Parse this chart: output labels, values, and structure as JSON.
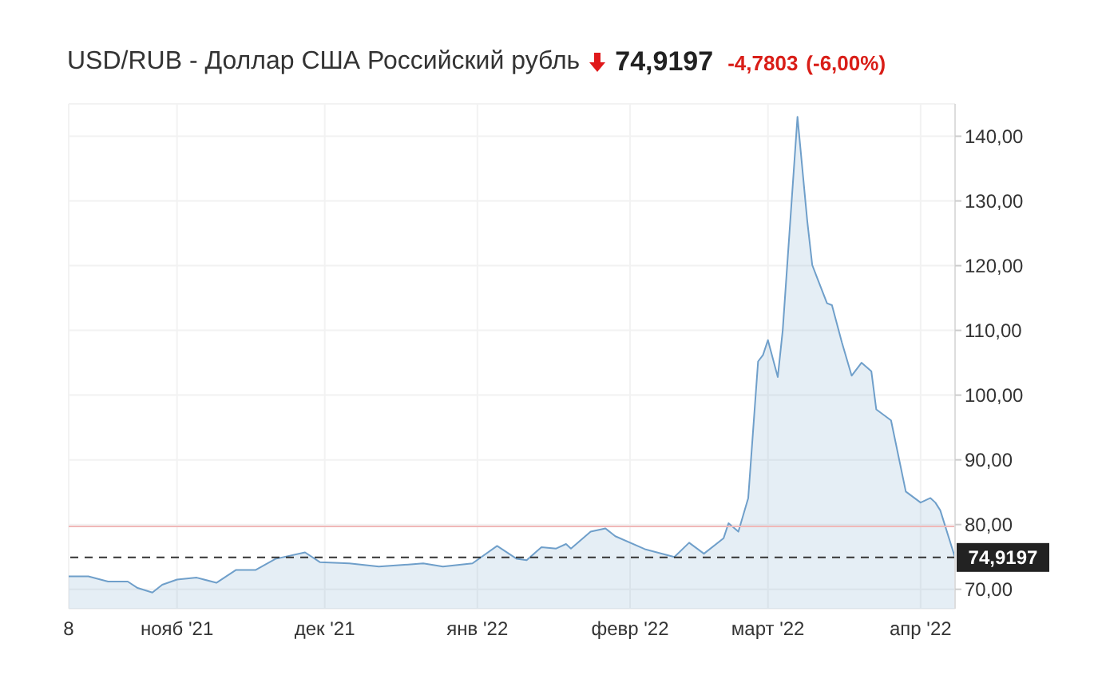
{
  "chart_data": {
    "type": "area",
    "title": "USD/RUB - Доллар США Российский рубль",
    "annotations": [
      "74,9197",
      "-4,7803",
      "(-6,00%)"
    ],
    "x": [
      "2021-10-10",
      "2021-10-14",
      "2021-10-18",
      "2021-10-22",
      "2021-10-24",
      "2021-10-27",
      "2021-10-29",
      "2021-11-01",
      "2021-11-05",
      "2021-11-09",
      "2021-11-13",
      "2021-11-17",
      "2021-11-21",
      "2021-11-27",
      "2021-11-30",
      "2021-12-06",
      "2021-12-12",
      "2021-12-21",
      "2021-12-25",
      "2021-12-31",
      "2022-01-05",
      "2022-01-09",
      "2022-01-11",
      "2022-01-14",
      "2022-01-17",
      "2022-01-19",
      "2022-01-20",
      "2022-01-24",
      "2022-01-27",
      "2022-01-29",
      "2022-02-04",
      "2022-02-10",
      "2022-02-13",
      "2022-02-16",
      "2022-02-20",
      "2022-02-21",
      "2022-02-23",
      "2022-02-25",
      "2022-02-27",
      "2022-02-28",
      "2022-03-01",
      "2022-03-03",
      "2022-03-04",
      "2022-03-07",
      "2022-03-09",
      "2022-03-10",
      "2022-03-11",
      "2022-03-13",
      "2022-03-14",
      "2022-03-16",
      "2022-03-18",
      "2022-03-20",
      "2022-03-22",
      "2022-03-23",
      "2022-03-26",
      "2022-03-29",
      "2022-04-01",
      "2022-04-03",
      "2022-04-04",
      "2022-04-05",
      "2022-04-08"
    ],
    "series": [
      {
        "color": "#6f9fca",
        "values": [
          72.0,
          72.0,
          71.2,
          71.2,
          70.2,
          69.5,
          70.7,
          71.5,
          71.8,
          71.0,
          73.0,
          73.0,
          74.7,
          75.7,
          74.2,
          74.0,
          73.5,
          74.0,
          73.5,
          74.0,
          76.7,
          74.7,
          74.5,
          76.5,
          76.3,
          77.0,
          76.3,
          78.9,
          79.4,
          78.2,
          76.2,
          75.0,
          77.2,
          75.5,
          77.9,
          80.2,
          78.9,
          84.1,
          105.2,
          106.2,
          108.5,
          102.8,
          110.0,
          143.0,
          126.8,
          120.1,
          118.1,
          114.2,
          113.9,
          108.2,
          103.0,
          105.0,
          103.7,
          97.8,
          96.1,
          85.1,
          83.4,
          84.1,
          83.4,
          82.2,
          74.9
        ]
      }
    ],
    "xlim": [
      "2021-10-10",
      "2022-04-08"
    ],
    "xticks": [
      {
        "value": "2021-10-10",
        "label": "8"
      },
      {
        "value": "2021-11-01",
        "label": "нояб '21"
      },
      {
        "value": "2021-12-01",
        "label": "дек '21"
      },
      {
        "value": "2022-01-01",
        "label": "янв '22"
      },
      {
        "value": "2022-02-01",
        "label": "февр '22"
      },
      {
        "value": "2022-03-01",
        "label": "март '22"
      },
      {
        "value": "2022-04-01",
        "label": "апр '22"
      }
    ],
    "ylim": [
      67,
      145
    ],
    "yticks": [
      {
        "value": 70,
        "label": "70,00"
      },
      {
        "value": 80,
        "label": "80,00"
      },
      {
        "value": 90,
        "label": "90,00"
      },
      {
        "value": 100,
        "label": "100,00"
      },
      {
        "value": 110,
        "label": "110,00"
      },
      {
        "value": 120,
        "label": "120,00"
      },
      {
        "value": 130,
        "label": "130,00"
      },
      {
        "value": 140,
        "label": "140,00"
      }
    ],
    "ref_lines": [
      {
        "axis": "y",
        "value": 79.7,
        "color": "#f0b8b8",
        "line_style": "solid"
      },
      {
        "axis": "y",
        "value": 74.9197,
        "label": "74,9197",
        "color": "#333333",
        "line_style": "dashed"
      }
    ],
    "grid": true
  }
}
